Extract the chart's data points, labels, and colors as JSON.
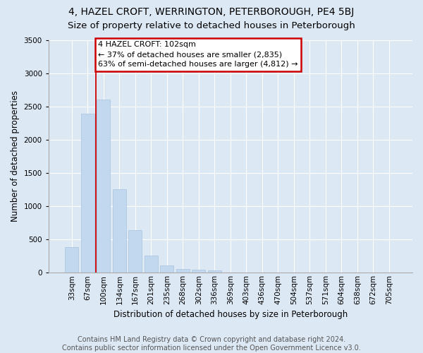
{
  "title": "4, HAZEL CROFT, WERRINGTON, PETERBOROUGH, PE4 5BJ",
  "subtitle": "Size of property relative to detached houses in Peterborough",
  "xlabel": "Distribution of detached houses by size in Peterborough",
  "ylabel": "Number of detached properties",
  "bar_labels": [
    "33sqm",
    "67sqm",
    "100sqm",
    "134sqm",
    "167sqm",
    "201sqm",
    "235sqm",
    "268sqm",
    "302sqm",
    "336sqm",
    "369sqm",
    "403sqm",
    "436sqm",
    "470sqm",
    "504sqm",
    "537sqm",
    "571sqm",
    "604sqm",
    "638sqm",
    "672sqm",
    "705sqm"
  ],
  "bar_values": [
    390,
    2390,
    2600,
    1250,
    640,
    260,
    110,
    60,
    45,
    35,
    0,
    0,
    0,
    0,
    0,
    0,
    0,
    0,
    0,
    0,
    0
  ],
  "bar_color": "#c2d8ee",
  "bar_edgecolor": "#a8c4de",
  "background_color": "#dde8f5",
  "grid_color": "#ffffff",
  "vline_color": "#cc0000",
  "vline_xidx": 2,
  "annotation_text": "4 HAZEL CROFT: 102sqm\n← 37% of detached houses are smaller (2,835)\n63% of semi-detached houses are larger (4,812) →",
  "annotation_box_facecolor": "#ffffff",
  "annotation_box_edgecolor": "#cc0000",
  "ylim": [
    0,
    3500
  ],
  "yticks": [
    0,
    500,
    1000,
    1500,
    2000,
    2500,
    3000,
    3500
  ],
  "footer_text": "Contains HM Land Registry data © Crown copyright and database right 2024.\nContains public sector information licensed under the Open Government Licence v3.0.",
  "title_fontsize": 10,
  "subtitle_fontsize": 9.5,
  "tick_fontsize": 7.5,
  "annotation_fontsize": 8,
  "footer_fontsize": 7,
  "ylabel_fontsize": 8.5,
  "xlabel_fontsize": 8.5
}
